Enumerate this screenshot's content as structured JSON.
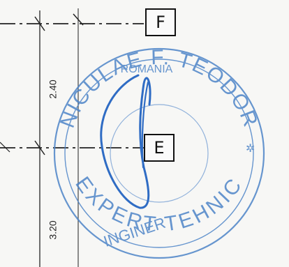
{
  "drawing": {
    "axis_tags": [
      "F",
      "E"
    ],
    "dimensions": [
      "2.40",
      "3.20"
    ]
  },
  "stamp": {
    "name_text": "NICULAE F. TEODOR",
    "country_text": "ROMANIA",
    "role_text": "EXPERT TEHNIC",
    "engineer_text": "INGINER",
    "color": "#4d84c8"
  },
  "signature": {
    "color": "#2f6cc4"
  },
  "colors": {
    "ink": "#111111",
    "paper": "#f7f7f5"
  }
}
